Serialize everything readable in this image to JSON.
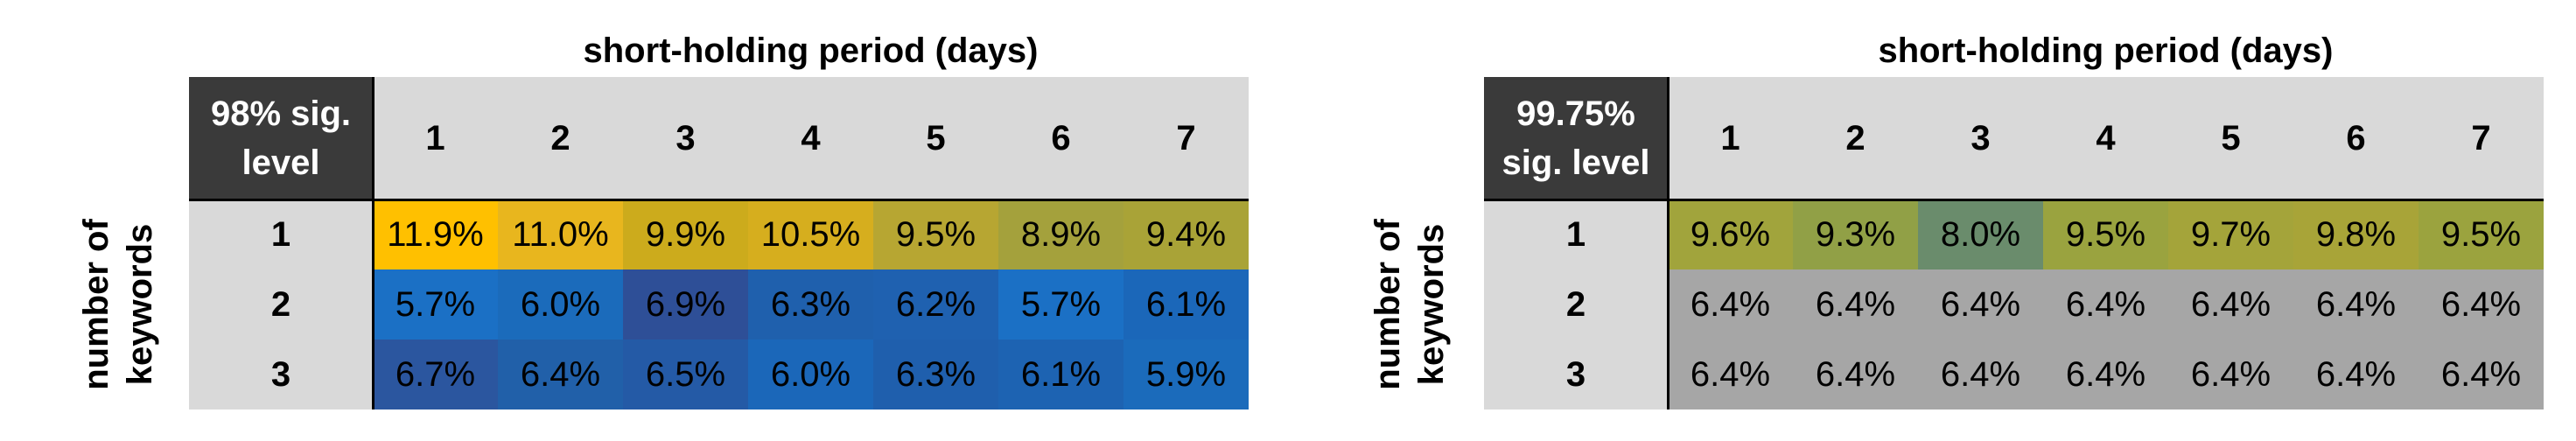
{
  "chart_data": [
    {
      "type": "heatmap",
      "title": "",
      "xlabel": "short-holding period (days)",
      "ylabel_lines": [
        "number of",
        "keywords"
      ],
      "corner_lines": [
        "98% sig.",
        "level"
      ],
      "x": [
        "1",
        "2",
        "3",
        "4",
        "5",
        "6",
        "7"
      ],
      "y": [
        "1",
        "2",
        "3"
      ],
      "values_pct": [
        [
          11.9,
          11.0,
          9.9,
          10.5,
          9.5,
          8.9,
          9.4
        ],
        [
          5.7,
          6.0,
          6.9,
          6.3,
          6.2,
          5.7,
          6.1
        ],
        [
          6.7,
          6.4,
          6.5,
          6.0,
          6.3,
          6.1,
          5.9
        ]
      ],
      "labels": [
        [
          "11.9%",
          "11.0%",
          "9.9%",
          "10.5%",
          "9.5%",
          "8.9%",
          "9.4%"
        ],
        [
          "5.7%",
          "6.0%",
          "6.9%",
          "6.3%",
          "6.2%",
          "5.7%",
          "6.1%"
        ],
        [
          "6.7%",
          "6.4%",
          "6.5%",
          "6.0%",
          "6.3%",
          "6.1%",
          "5.9%"
        ]
      ],
      "colors": [
        [
          "#ffc000",
          "#e8b61e",
          "#ccab1c",
          "#d6ae1e",
          "#b7a632",
          "#a4a13c",
          "#a9a337"
        ],
        [
          "#1b70c5",
          "#1b6bbb",
          "#2e4f97",
          "#1f60ad",
          "#1f61b0",
          "#1b70c5",
          "#1b67b9"
        ],
        [
          "#2b569f",
          "#2160a9",
          "#245aa6",
          "#1b67b9",
          "#1f5fad",
          "#1d63b2",
          "#1b6bbb"
        ]
      ]
    },
    {
      "type": "heatmap",
      "title": "",
      "xlabel": "short-holding period (days)",
      "ylabel_lines": [
        "number of",
        "keywords"
      ],
      "corner_lines": [
        "99.75%",
        "sig. level"
      ],
      "x": [
        "1",
        "2",
        "3",
        "4",
        "5",
        "6",
        "7"
      ],
      "y": [
        "1",
        "2",
        "3"
      ],
      "values_pct": [
        [
          9.6,
          9.3,
          8.0,
          9.5,
          9.7,
          9.8,
          9.5
        ],
        [
          6.4,
          6.4,
          6.4,
          6.4,
          6.4,
          6.4,
          6.4
        ],
        [
          6.4,
          6.4,
          6.4,
          6.4,
          6.4,
          6.4,
          6.4
        ]
      ],
      "labels": [
        [
          "9.6%",
          "9.3%",
          "8.0%",
          "9.5%",
          "9.7%",
          "9.8%",
          "9.5%"
        ],
        [
          "6.4%",
          "6.4%",
          "6.4%",
          "6.4%",
          "6.4%",
          "6.4%",
          "6.4%"
        ],
        [
          "6.4%",
          "6.4%",
          "6.4%",
          "6.4%",
          "6.4%",
          "6.4%",
          "6.4%"
        ]
      ],
      "colors": [
        [
          "#a1a43c",
          "#91a046",
          "#6a8c6c",
          "#9aa33f",
          "#a4a43a",
          "#a8a438",
          "#9ba33e"
        ],
        [
          "#a6a6a6",
          "#a6a6a6",
          "#a6a6a6",
          "#a6a6a6",
          "#a6a6a6",
          "#a6a6a6",
          "#a6a6a6"
        ],
        [
          "#a6a6a6",
          "#a6a6a6",
          "#a6a6a6",
          "#a6a6a6",
          "#a6a6a6",
          "#a6a6a6",
          "#a6a6a6"
        ]
      ]
    }
  ]
}
